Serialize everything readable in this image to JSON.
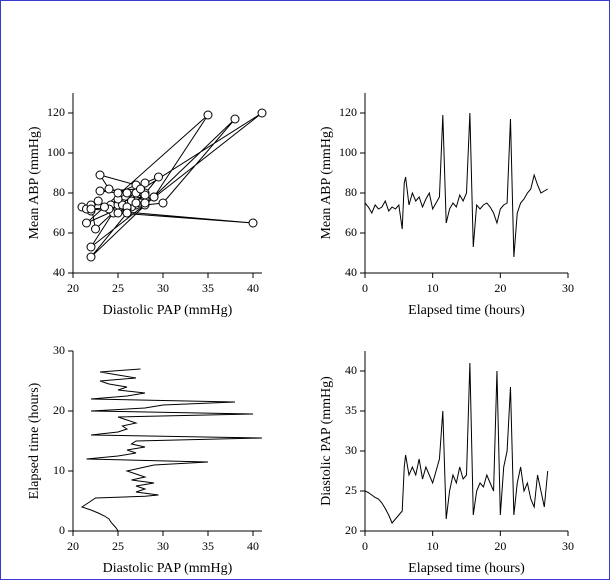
{
  "chart_data": [
    {
      "type": "line",
      "markers": true,
      "color": "#000000",
      "xlabel": "Diastolic PAP (mmHg)",
      "ylabel": "Mean ABP (mmHg)",
      "xlim": [
        20,
        41
      ],
      "ylim": [
        40,
        130
      ],
      "xticks": [
        20,
        25,
        30,
        35,
        40
      ],
      "yticks": [
        40,
        60,
        80,
        100,
        120
      ],
      "x": [
        25,
        24.8,
        24.5,
        24.2,
        24,
        23.5,
        22.8,
        22,
        21,
        21.5,
        22,
        22.5,
        28,
        29.5,
        27,
        28,
        27,
        29,
        26.5,
        28,
        27,
        26,
        27.5,
        29,
        35,
        21.5,
        25,
        27,
        26,
        28,
        26.5,
        27,
        41,
        22,
        25,
        26,
        25.5,
        27,
        26,
        25,
        40,
        22,
        28,
        30,
        38,
        22,
        26,
        28,
        25,
        26,
        24,
        23,
        27,
        25,
        23,
        27.5
      ],
      "values": [
        75,
        73,
        70,
        74,
        72,
        73,
        76,
        71,
        73,
        72,
        74,
        62,
        85,
        88,
        74,
        80,
        76,
        78,
        73,
        77,
        80,
        72,
        75,
        78,
        119,
        65,
        72,
        75,
        73,
        79,
        76,
        80,
        120,
        53,
        74,
        72,
        74,
        75,
        73,
        70,
        65,
        72,
        74,
        75,
        117,
        48,
        70,
        75,
        77,
        80,
        82,
        89,
        84,
        80,
        81,
        82
      ]
    },
    {
      "type": "line",
      "markers": false,
      "color": "#000000",
      "xlabel": "Elapsed time (hours)",
      "ylabel": "Mean ABP (mmHg)",
      "xlim": [
        0,
        30
      ],
      "ylim": [
        40,
        130
      ],
      "xticks": [
        0,
        10,
        20,
        30
      ],
      "yticks": [
        40,
        60,
        80,
        100,
        120
      ],
      "x": [
        0,
        0.5,
        1,
        1.5,
        2,
        2.5,
        3,
        3.5,
        4,
        4.5,
        5,
        5.5,
        5.8,
        6,
        6.5,
        7,
        7.5,
        8,
        8.5,
        9,
        9.5,
        10,
        10.5,
        11,
        11.5,
        12,
        12.5,
        13,
        13.5,
        14,
        14.5,
        15,
        15.5,
        16,
        16.5,
        17,
        17.5,
        18,
        18.5,
        19,
        19.5,
        20,
        20.5,
        21,
        21.5,
        22,
        22.5,
        23,
        23.5,
        24,
        24.5,
        25,
        25.5,
        26,
        26.5,
        27
      ],
      "values": [
        75,
        73,
        70,
        74,
        72,
        73,
        76,
        71,
        73,
        72,
        74,
        62,
        85,
        88,
        74,
        80,
        76,
        78,
        73,
        77,
        80,
        72,
        75,
        78,
        119,
        65,
        72,
        75,
        73,
        79,
        76,
        80,
        120,
        53,
        74,
        72,
        74,
        75,
        73,
        70,
        65,
        72,
        74,
        75,
        117,
        48,
        70,
        75,
        77,
        80,
        82,
        89,
        84,
        80,
        81,
        82
      ]
    },
    {
      "type": "line",
      "markers": false,
      "color": "#000000",
      "xlabel": "Diastolic PAP (mmHg)",
      "ylabel": "Elapsed time (hours)",
      "xlim": [
        20,
        41
      ],
      "ylim": [
        0,
        30
      ],
      "xticks": [
        20,
        25,
        30,
        35,
        40
      ],
      "yticks": [
        0,
        10,
        20,
        30
      ],
      "x": [
        25,
        24.8,
        24.5,
        24.2,
        24,
        23.5,
        22.8,
        22,
        21,
        21.5,
        22,
        22.5,
        28,
        29.5,
        27,
        28,
        27,
        29,
        26.5,
        28,
        27,
        26,
        27.5,
        29,
        35,
        21.5,
        25,
        27,
        26,
        28,
        26.5,
        27,
        41,
        22,
        25,
        26,
        25.5,
        27,
        26,
        25,
        40,
        22,
        28,
        30,
        38,
        22,
        26,
        28,
        25,
        26,
        24,
        23,
        27,
        25,
        23,
        27.5
      ],
      "values": [
        0,
        0.5,
        1,
        1.5,
        2,
        2.5,
        3,
        3.5,
        4,
        4.5,
        5,
        5.5,
        5.8,
        6,
        6.5,
        7,
        7.5,
        8,
        8.5,
        9,
        9.5,
        10,
        10.5,
        11,
        11.5,
        12,
        12.5,
        13,
        13.5,
        14,
        14.5,
        15,
        15.5,
        16,
        16.5,
        17,
        17.5,
        18,
        18.5,
        19,
        19.5,
        20,
        20.5,
        21,
        21.5,
        22,
        22.5,
        23,
        23.5,
        24,
        24.5,
        25,
        25.5,
        26,
        26.5,
        27
      ]
    },
    {
      "type": "line",
      "markers": false,
      "color": "#000000",
      "xlabel": "Elapsed time (hours)",
      "ylabel": "Diastolic PAP (mmHg)",
      "xlim": [
        0,
        30
      ],
      "ylim": [
        20,
        42.5
      ],
      "xticks": [
        0,
        10,
        20,
        30
      ],
      "yticks": [
        20,
        25,
        30,
        35,
        40
      ],
      "x": [
        0,
        0.5,
        1,
        1.5,
        2,
        2.5,
        3,
        3.5,
        4,
        4.5,
        5,
        5.5,
        5.8,
        6,
        6.5,
        7,
        7.5,
        8,
        8.5,
        9,
        9.5,
        10,
        10.5,
        11,
        11.5,
        12,
        12.5,
        13,
        13.5,
        14,
        14.5,
        15,
        15.5,
        16,
        16.5,
        17,
        17.5,
        18,
        18.5,
        19,
        19.5,
        20,
        20.5,
        21,
        21.5,
        22,
        22.5,
        23,
        23.5,
        24,
        24.5,
        25,
        25.5,
        26,
        26.5,
        27
      ],
      "values": [
        25,
        24.8,
        24.5,
        24.2,
        24,
        23.5,
        22.8,
        22,
        21,
        21.5,
        22,
        22.5,
        28,
        29.5,
        27,
        28,
        27,
        29,
        26.5,
        28,
        27,
        26,
        27.5,
        29,
        35,
        21.5,
        25,
        27,
        26,
        28,
        26.5,
        27,
        41,
        22,
        25,
        26,
        25.5,
        27,
        26,
        25,
        40,
        22,
        28,
        30,
        38,
        22,
        26,
        28,
        25,
        26,
        24,
        23,
        27,
        25,
        23,
        27.5
      ]
    }
  ]
}
